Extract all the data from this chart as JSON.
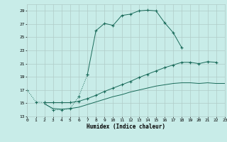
{
  "xlabel": "Humidex (Indice chaleur)",
  "bg_color": "#c8ece8",
  "grid_color": "#b0ccc8",
  "line_color": "#1a6b5a",
  "xmin": 0,
  "xmax": 23,
  "ymin": 13,
  "ymax": 30,
  "yticks": [
    13,
    15,
    17,
    19,
    21,
    23,
    25,
    27,
    29
  ],
  "xticks": [
    0,
    1,
    2,
    3,
    4,
    5,
    6,
    7,
    8,
    9,
    10,
    11,
    12,
    13,
    14,
    15,
    16,
    17,
    18,
    19,
    20,
    21,
    22,
    23
  ],
  "line1_x": [
    0,
    1,
    2,
    3,
    4,
    5,
    6,
    7,
    8,
    9,
    10,
    11,
    12,
    13,
    14,
    15,
    16,
    17,
    18
  ],
  "line1_y": [
    17,
    15.2,
    15.1,
    14.0,
    14.0,
    14.2,
    16.0,
    19.3,
    26.0,
    27.1,
    26.8,
    28.3,
    28.5,
    29.0,
    29.1,
    29.0,
    27.2,
    25.7,
    23.4
  ],
  "line2_x": [
    2,
    3,
    4,
    5,
    6,
    7,
    8,
    9,
    10,
    11,
    12,
    13,
    14,
    15,
    16,
    17,
    18,
    19,
    20,
    21,
    22
  ],
  "line2_y": [
    15.1,
    15.1,
    15.1,
    15.1,
    15.3,
    15.7,
    16.2,
    16.8,
    17.3,
    17.8,
    18.3,
    18.9,
    19.4,
    19.9,
    20.4,
    20.8,
    21.2,
    21.2,
    21.0,
    21.3,
    21.2
  ],
  "line3_x": [
    2,
    3,
    4,
    5,
    6,
    7,
    8,
    9,
    10,
    11,
    12,
    13,
    14,
    15,
    16,
    17,
    18,
    19,
    20,
    21,
    22,
    23
  ],
  "line3_y": [
    14.9,
    14.2,
    14.1,
    14.2,
    14.4,
    14.8,
    15.2,
    15.6,
    16.0,
    16.3,
    16.7,
    17.0,
    17.3,
    17.6,
    17.8,
    18.0,
    18.1,
    18.1,
    18.0,
    18.1,
    18.0,
    18.0
  ]
}
